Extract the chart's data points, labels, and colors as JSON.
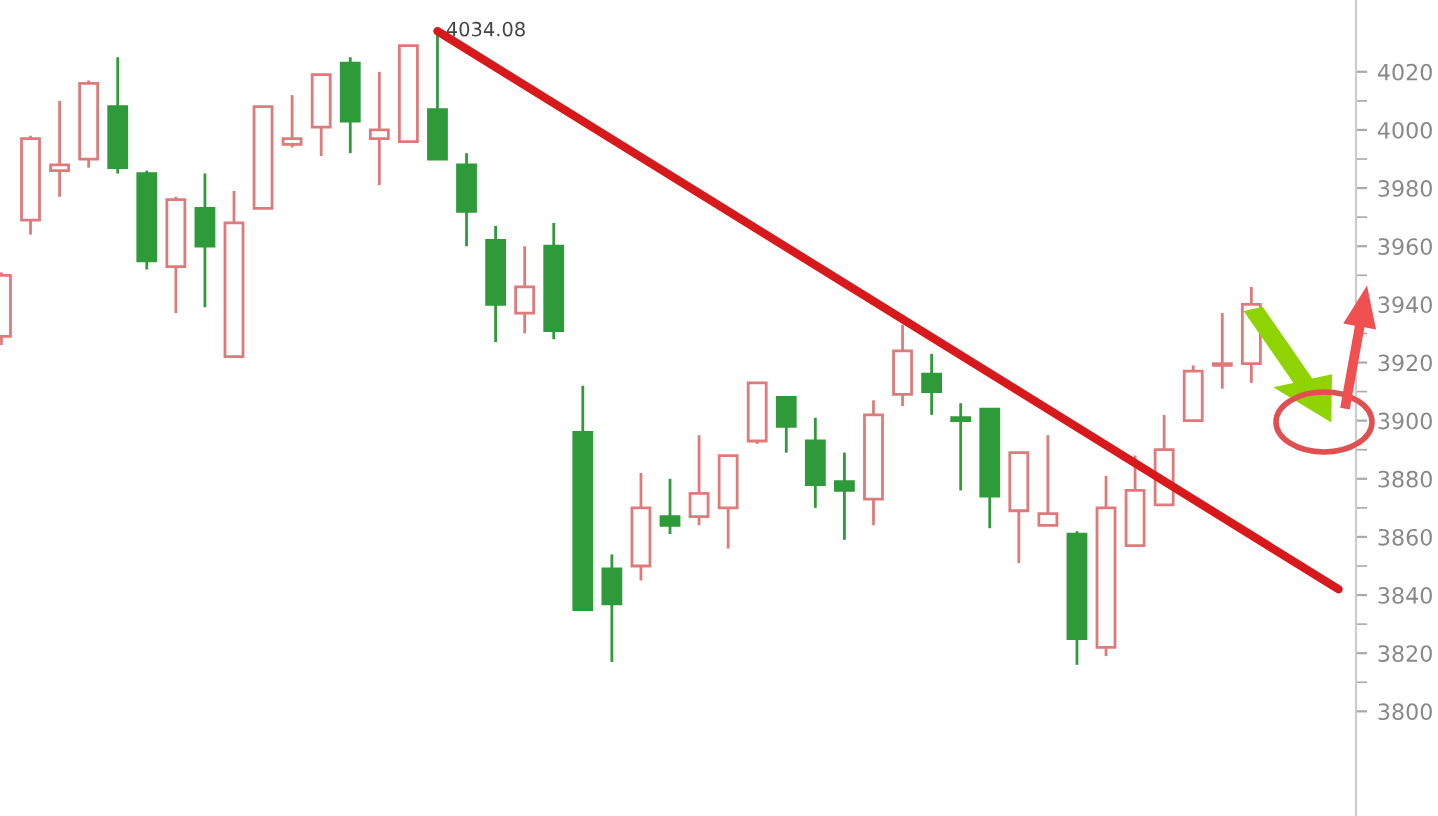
{
  "chart_data": {
    "type": "candlestick",
    "categories": [
      null,
      null,
      null,
      null,
      null,
      null,
      null,
      null,
      null,
      null,
      null,
      null,
      null,
      null,
      null,
      null,
      null,
      null,
      null,
      null,
      null,
      null,
      null,
      null,
      null,
      null,
      null,
      null,
      null,
      null,
      null,
      null,
      null,
      null,
      null,
      null,
      null,
      null,
      null,
      null,
      null,
      null,
      null,
      null,
      null,
      null,
      null
    ],
    "ohlc": [
      [
        3929,
        3951,
        3926,
        3950
      ],
      [
        3969,
        3998,
        3964,
        3997
      ],
      [
        3986,
        4010,
        3977,
        3988
      ],
      [
        3990,
        4017,
        3987,
        4016
      ],
      [
        4008,
        4025,
        3985,
        3987
      ],
      [
        3985,
        3986,
        3952,
        3955
      ],
      [
        3953,
        3977,
        3937,
        3976
      ],
      [
        3973,
        3985,
        3939,
        3960
      ],
      [
        3922,
        3979,
        3922,
        3968
      ],
      [
        3973,
        4008,
        3973,
        4008
      ],
      [
        3995,
        4012,
        3994,
        3997
      ],
      [
        4001,
        4019,
        3991,
        4019
      ],
      [
        4023,
        4025,
        3992,
        4003
      ],
      [
        3997,
        4020,
        3981,
        4000
      ],
      [
        3996,
        4029,
        3996,
        4029
      ],
      [
        4007,
        4034.08,
        3990,
        3990
      ],
      [
        3988,
        3992,
        3960,
        3972
      ],
      [
        3962,
        3967,
        3927,
        3940
      ],
      [
        3937,
        3960,
        3930,
        3946
      ],
      [
        3960,
        3968,
        3928,
        3931
      ],
      [
        3896,
        3912,
        3835,
        3835
      ],
      [
        3849,
        3854,
        3817,
        3837
      ],
      [
        3850,
        3882,
        3845,
        3870
      ],
      [
        3867,
        3880,
        3861,
        3864
      ],
      [
        3867,
        3895,
        3864,
        3875
      ],
      [
        3870,
        3888,
        3856,
        3888
      ],
      [
        3893,
        3913,
        3892,
        3913
      ],
      [
        3908,
        3908,
        3889,
        3898
      ],
      [
        3893,
        3901,
        3870,
        3878
      ],
      [
        3879,
        3889,
        3859,
        3876
      ],
      [
        3873,
        3907,
        3864,
        3902
      ],
      [
        3909,
        3933,
        3905,
        3924
      ],
      [
        3916,
        3923,
        3902,
        3910
      ],
      [
        3901,
        3906,
        3876,
        3900
      ],
      [
        3904,
        3904,
        3863,
        3874
      ],
      [
        3869,
        3889,
        3851,
        3889
      ],
      [
        3864,
        3895,
        3864,
        3868
      ],
      [
        3861,
        3862,
        3816,
        3825
      ],
      [
        3822,
        3881,
        3819,
        3870
      ],
      [
        3857,
        3888,
        3857,
        3876
      ],
      [
        3871,
        3902,
        3871,
        3890
      ],
      [
        3900,
        3919,
        3900,
        3917
      ],
      [
        3919,
        3937,
        3911,
        3919.6
      ],
      [
        3919.6,
        3946,
        3913,
        3940
      ],
      null,
      null,
      null
    ],
    "colors": [
      "#e07a7a",
      "#e07a7a",
      "#e07a7a",
      "#e07a7a",
      "#2e9a3a",
      "#2e9a3a",
      "#e07a7a",
      "#2e9a3a",
      "#e07a7a",
      "#e07a7a",
      "#e07a7a",
      "#e07a7a",
      "#2e9a3a",
      "#e07a7a",
      "#e07a7a",
      "#2e9a3a",
      "#2e9a3a",
      "#2e9a3a",
      "#e07a7a",
      "#2e9a3a",
      "#2e9a3a",
      "#2e9a3a",
      "#e07a7a",
      "#2e9a3a",
      "#e07a7a",
      "#e07a7a",
      "#e07a7a",
      "#2e9a3a",
      "#2e9a3a",
      "#2e9a3a",
      "#e07a7a",
      "#e07a7a",
      "#2e9a3a",
      "#2e9a3a",
      "#2e9a3a",
      "#e07a7a",
      "#e07a7a",
      "#2e9a3a",
      "#e07a7a",
      "#e07a7a",
      "#e07a7a",
      "#e07a7a",
      "#e07a7a",
      "#e07a7a",
      null,
      null,
      null
    ],
    "series": [
      {
        "type": "line",
        "color": "#d7191c",
        "values": [
          null,
          null,
          null,
          null,
          null,
          null,
          null,
          null,
          null,
          null,
          null,
          null,
          null,
          null,
          null,
          4034,
          null,
          null,
          null,
          null,
          null,
          null,
          null,
          null,
          null,
          null,
          null,
          null,
          null,
          null,
          null,
          null,
          null,
          null,
          null,
          null,
          null,
          null,
          null,
          null,
          null,
          null,
          null,
          null,
          null,
          null,
          3842
        ]
      }
    ],
    "annotations": [
      "4034.08"
    ],
    "ylim": [
      3764,
      4044.7
    ],
    "yticks": [
      3800,
      3820,
      3840,
      3860,
      3880,
      3900,
      3920,
      3940,
      3960,
      3980,
      4000,
      4020
    ],
    "tick_labels": "y",
    "grid": false
  }
}
